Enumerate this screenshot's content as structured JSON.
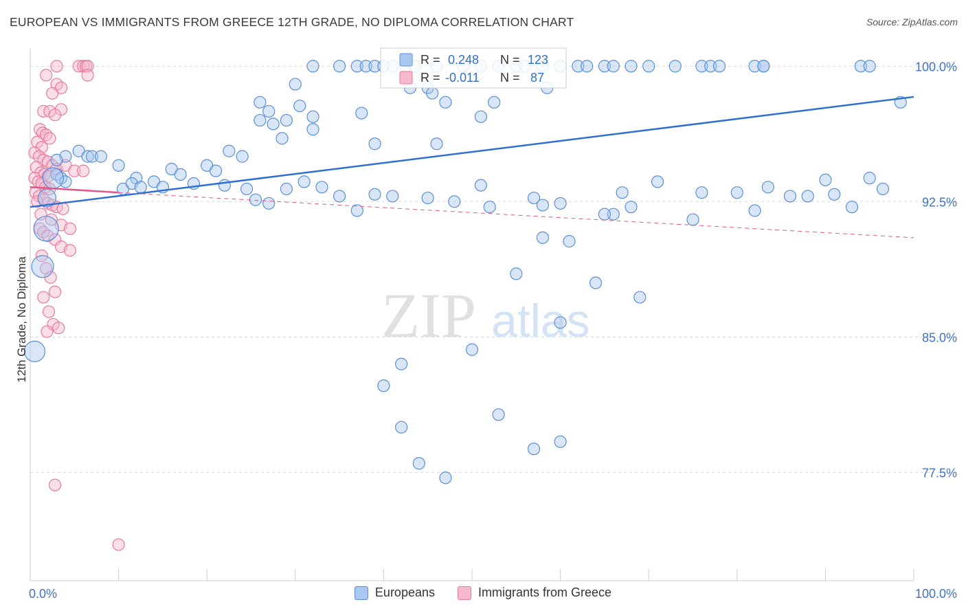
{
  "title": "EUROPEAN VS IMMIGRANTS FROM GREECE 12TH GRADE, NO DIPLOMA CORRELATION CHART",
  "source": "Source: ZipAtlas.com",
  "watermark": {
    "zip": "ZIP",
    "atlas": "atlas"
  },
  "colors": {
    "blue_fill": "#a9c8f0",
    "blue_stroke": "#5a8fd6",
    "blue_line": "#2f6fd0",
    "pink_fill": "#f6b8cb",
    "pink_stroke": "#e77b9c",
    "pink_line": "#e0588a",
    "tick_label": "#3f72c6",
    "grid": "#d8d8d8"
  },
  "legend_box": {
    "rows": [
      {
        "r_label": "R =",
        "r_value": "0.248",
        "n_label": "N =",
        "n_value": "123"
      },
      {
        "r_label": "R =",
        "r_value": "-0.011",
        "n_label": "N =",
        "n_value": "87"
      }
    ]
  },
  "legend_bottom": [
    "Europeans",
    "Immigrants from Greece"
  ],
  "chart_data": {
    "type": "scatter",
    "title": "EUROPEAN VS IMMIGRANTS FROM GREECE 12TH GRADE, NO DIPLOMA CORRELATION CHART",
    "xlabel": "",
    "ylabel": "12th Grade, No Diploma",
    "xlim": [
      0,
      100
    ],
    "ylim": [
      71.5,
      101.0
    ],
    "x_tick_labels": [
      "0.0%",
      "100.0%"
    ],
    "y_ticks": [
      {
        "value": 100.0,
        "label": "100.0%"
      },
      {
        "value": 92.5,
        "label": "92.5%"
      },
      {
        "value": 85.0,
        "label": "85.0%"
      },
      {
        "value": 77.5,
        "label": "77.5%"
      }
    ],
    "grid": "horizontal dashed",
    "legend_placement": "top-center",
    "series": [
      {
        "name": "Europeans",
        "R": 0.248,
        "N": 123,
        "trend": {
          "x": [
            0,
            100
          ],
          "y": [
            92.2,
            98.3
          ],
          "style": "solid"
        },
        "points": [
          [
            32,
            100
          ],
          [
            35,
            100
          ],
          [
            37,
            100
          ],
          [
            38,
            100
          ],
          [
            39,
            100
          ],
          [
            40,
            100
          ],
          [
            41,
            100
          ],
          [
            42.5,
            100
          ],
          [
            43.5,
            100
          ],
          [
            46,
            100
          ],
          [
            49,
            100
          ],
          [
            51,
            100
          ],
          [
            53,
            100
          ],
          [
            55,
            100
          ],
          [
            56,
            100
          ],
          [
            58,
            100
          ],
          [
            60,
            100
          ],
          [
            62,
            100
          ],
          [
            63,
            100
          ],
          [
            65,
            100
          ],
          [
            66,
            100
          ],
          [
            68,
            100
          ],
          [
            70,
            100
          ],
          [
            73,
            100
          ],
          [
            76,
            100
          ],
          [
            77,
            100
          ],
          [
            78,
            100
          ],
          [
            82,
            100
          ],
          [
            83,
            100
          ],
          [
            83,
            100
          ],
          [
            94,
            100
          ],
          [
            95,
            100
          ],
          [
            98.5,
            98
          ],
          [
            43,
            98.8
          ],
          [
            58.5,
            98.8
          ],
          [
            45,
            98.8
          ],
          [
            30,
            99
          ],
          [
            45.5,
            98.5
          ],
          [
            47,
            98
          ],
          [
            52.5,
            98
          ],
          [
            32,
            97.2
          ],
          [
            26,
            98
          ],
          [
            27,
            97.5
          ],
          [
            29,
            97
          ],
          [
            30.5,
            97.8
          ],
          [
            37.5,
            97.4
          ],
          [
            51,
            97.2
          ],
          [
            26,
            97
          ],
          [
            27.5,
            96.8
          ],
          [
            32,
            96.5
          ],
          [
            46,
            95.7
          ],
          [
            28.5,
            96
          ],
          [
            39,
            95.7
          ],
          [
            22.5,
            95.3
          ],
          [
            24,
            95
          ],
          [
            5.5,
            95.3
          ],
          [
            6.5,
            95
          ],
          [
            7,
            95
          ],
          [
            8,
            95
          ],
          [
            4,
            95
          ],
          [
            3,
            94.8
          ],
          [
            10,
            94.5
          ],
          [
            12,
            93.8
          ],
          [
            16,
            94.3
          ],
          [
            17,
            94
          ],
          [
            20,
            94.5
          ],
          [
            21,
            94.2
          ],
          [
            3,
            94
          ],
          [
            3.5,
            93.8
          ],
          [
            4,
            93.6
          ],
          [
            10.5,
            93.2
          ],
          [
            11.5,
            93.5
          ],
          [
            12.5,
            93.3
          ],
          [
            14,
            93.6
          ],
          [
            15,
            93.3
          ],
          [
            18.5,
            93.5
          ],
          [
            22,
            93.4
          ],
          [
            24.5,
            93.2
          ],
          [
            25.5,
            92.6
          ],
          [
            27,
            92.4
          ],
          [
            29,
            93.2
          ],
          [
            31,
            93.6
          ],
          [
            33,
            93.3
          ],
          [
            35,
            92.8
          ],
          [
            37,
            92
          ],
          [
            39,
            92.9
          ],
          [
            41,
            92.8
          ],
          [
            45,
            92.7
          ],
          [
            48,
            92.5
          ],
          [
            51,
            93.4
          ],
          [
            52,
            92.2
          ],
          [
            57,
            92.7
          ],
          [
            58,
            92.3
          ],
          [
            60,
            92.4
          ],
          [
            66,
            91.8
          ],
          [
            67,
            93
          ],
          [
            68,
            92.2
          ],
          [
            71,
            93.6
          ],
          [
            76,
            93
          ],
          [
            80,
            93
          ],
          [
            83.5,
            93.3
          ],
          [
            86,
            92.8
          ],
          [
            88,
            92.8
          ],
          [
            90,
            93.7
          ],
          [
            91,
            92.9
          ],
          [
            93,
            92.2
          ],
          [
            95,
            93.8
          ],
          [
            96.5,
            93.2
          ],
          [
            75,
            91.5
          ],
          [
            65,
            91.8
          ],
          [
            82,
            92
          ],
          [
            58,
            90.5
          ],
          [
            61,
            90.3
          ],
          [
            64,
            88
          ],
          [
            69,
            87.2
          ],
          [
            55,
            88.5
          ],
          [
            60,
            85.8
          ],
          [
            50,
            84.3
          ],
          [
            42,
            83.5
          ],
          [
            40,
            82.3
          ],
          [
            42,
            80
          ],
          [
            44,
            78
          ],
          [
            47,
            77.2
          ],
          [
            53,
            80.7
          ],
          [
            57,
            78.8
          ],
          [
            60,
            79.2
          ]
        ]
      },
      {
        "name": "Immigrants from Greece",
        "R": -0.011,
        "N": 87,
        "trend": {
          "x": [
            0,
            10
          ],
          "y": [
            93.3,
            93.0
          ],
          "style": "solid",
          "extended": {
            "x": [
              10,
              100
            ],
            "y": [
              93.0,
              90.5
            ],
            "style": "dashed"
          }
        },
        "points": [
          [
            3,
            100
          ],
          [
            5.5,
            100
          ],
          [
            6,
            100
          ],
          [
            6.3,
            100
          ],
          [
            6.5,
            100
          ],
          [
            1.8,
            99.5
          ],
          [
            6.5,
            99.5
          ],
          [
            3,
            99
          ],
          [
            3.5,
            98.8
          ],
          [
            2.5,
            98.5
          ],
          [
            1.5,
            97.5
          ],
          [
            2.2,
            97.5
          ],
          [
            3.5,
            97.6
          ],
          [
            2.8,
            97.3
          ],
          [
            1.1,
            96.5
          ],
          [
            1.4,
            96.3
          ],
          [
            1.8,
            96.2
          ],
          [
            2.2,
            96
          ],
          [
            0.8,
            95.8
          ],
          [
            1.3,
            95.5
          ],
          [
            0.5,
            95.2
          ],
          [
            1,
            95
          ],
          [
            1.5,
            94.8
          ],
          [
            2,
            94.7
          ],
          [
            2.5,
            94.5
          ],
          [
            3,
            94.3
          ],
          [
            4,
            94.5
          ],
          [
            5,
            94.2
          ],
          [
            6,
            94.2
          ],
          [
            0.7,
            94.4
          ],
          [
            1.2,
            94.1
          ],
          [
            1.6,
            94
          ],
          [
            2,
            93.9
          ],
          [
            0.5,
            93.8
          ],
          [
            0.9,
            93.6
          ],
          [
            1.3,
            93.5
          ],
          [
            1.7,
            93.3
          ],
          [
            2.2,
            93.2
          ],
          [
            0.6,
            93
          ],
          [
            1,
            92.8
          ],
          [
            1.5,
            92.6
          ],
          [
            2,
            92.4
          ],
          [
            2.5,
            92.3
          ],
          [
            3,
            92.2
          ],
          [
            3.7,
            92.1
          ],
          [
            0.8,
            92.5
          ],
          [
            1.2,
            91.8
          ],
          [
            2.4,
            91.5
          ],
          [
            3.5,
            91.2
          ],
          [
            4.5,
            91
          ],
          [
            1.1,
            91
          ],
          [
            1.5,
            90.8
          ],
          [
            2,
            90.6
          ],
          [
            2.8,
            90.4
          ],
          [
            3.5,
            90
          ],
          [
            4.5,
            89.8
          ],
          [
            1.3,
            89.5
          ],
          [
            1.8,
            88.8
          ],
          [
            2.3,
            88.3
          ],
          [
            2.8,
            87.5
          ],
          [
            1.5,
            87.2
          ],
          [
            2.1,
            86.4
          ],
          [
            2.6,
            85.7
          ],
          [
            3.2,
            85.5
          ],
          [
            1.9,
            85.3
          ],
          [
            2.8,
            76.8
          ],
          [
            10,
            73.5
          ]
        ]
      }
    ]
  }
}
